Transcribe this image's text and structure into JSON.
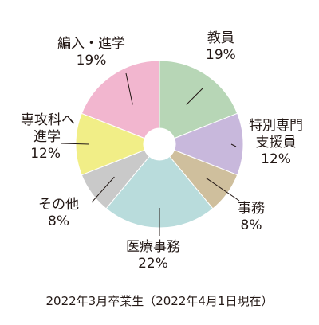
{
  "chart_data": {
    "type": "pie",
    "style": "donut",
    "categories": [
      "教員",
      "特別専門支援員",
      "事務",
      "医療事務",
      "その他",
      "専攻科へ進学",
      "編入・進学"
    ],
    "values": [
      19,
      12,
      8,
      22,
      8,
      12,
      19
    ],
    "unit": "%",
    "colors": [
      "#b7d6b6",
      "#c8b8dc",
      "#cfbf9d",
      "#b9dcdc",
      "#c9c9c9",
      "#f1ee87",
      "#f2b6cf"
    ],
    "labels": [
      {
        "lines": [
          "教員"
        ],
        "value": "19%"
      },
      {
        "lines": [
          "特別専門",
          "支援員"
        ],
        "value": "12%"
      },
      {
        "lines": [
          "事務"
        ],
        "value": "8%"
      },
      {
        "lines": [
          "医療事務"
        ],
        "value": "22%"
      },
      {
        "lines": [
          "その他"
        ],
        "value": "8%"
      },
      {
        "lines": [
          "専攻科へ",
          "進学"
        ],
        "value": "12%"
      },
      {
        "lines": [
          "編入・進学"
        ],
        "value": "19%"
      }
    ],
    "caption": "2022年3月卒業生（2022年4月1日現在）"
  }
}
